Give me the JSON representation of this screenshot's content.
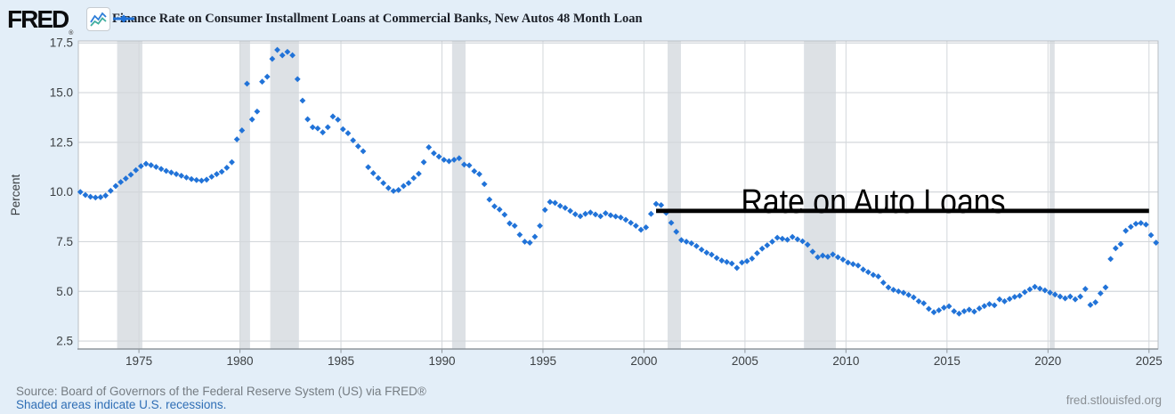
{
  "header": {
    "logo_text": "FRED",
    "registered_mark": "®",
    "series_title": "Finance Rate on Consumer Installment Loans at Commercial Banks, New Autos 48 Month Loan"
  },
  "footer": {
    "source_line": "Source: Board of Governors of the Federal Reserve System (US) via FRED®",
    "shaded_note": "Shaded areas indicate U.S. recessions.",
    "site_url": "fred.stlouisfed.org"
  },
  "colors": {
    "page_background": "#e3eef8",
    "plot_background": "#ffffff",
    "series_blue": "#2173d8",
    "recession_band": "#dde1e5",
    "gridline": "#d3d7db",
    "plot_border": "#b9bec3",
    "axis_line": "#8f969c",
    "tick_label": "#3c4043",
    "annotation_black": "#000000",
    "source_text": "#757c82",
    "link_blue": "#2f6eb5"
  },
  "chart_data": {
    "type": "scatter",
    "marker": "diamond",
    "title": "Finance Rate on Consumer Installment Loans at Commercial Banks, New Autos 48 Month Loan",
    "xlabel": "",
    "ylabel": "Percent",
    "xlim": [
      1972.0,
      2025.45
    ],
    "ylim": [
      2.1,
      17.6
    ],
    "grid": true,
    "legend_position": "top",
    "x_ticks": [
      1975,
      1980,
      1985,
      1990,
      1995,
      2000,
      2005,
      2010,
      2015,
      2020,
      2025
    ],
    "y_ticks": [
      {
        "value": 17.5,
        "label": "17.5"
      },
      {
        "value": 15.0,
        "label": "15.0"
      },
      {
        "value": 12.5,
        "label": "12.5"
      },
      {
        "value": 10.0,
        "label": "10.0"
      },
      {
        "value": 7.5,
        "label": "7.5"
      },
      {
        "value": 5.0,
        "label": "5.0"
      },
      {
        "value": 2.5,
        "label": "2.5"
      }
    ],
    "recessions": [
      [
        1973.92,
        1975.17
      ],
      [
        1980.0,
        1980.5
      ],
      [
        1981.5,
        1982.92
      ],
      [
        1990.5,
        1991.17
      ],
      [
        2001.17,
        2001.83
      ],
      [
        2007.92,
        2009.5
      ],
      [
        2020.08,
        2020.33
      ]
    ],
    "annotation": {
      "text": "Rate on Auto Loans",
      "line_value": 9.05,
      "line_start_year": 2000.6,
      "line_end_year": 2025.0,
      "text_center_year": 2011.35
    },
    "series": [
      {
        "name": "Finance Rate on Consumer Installment Loans at Commercial Banks, New Autos 48 Month Loan",
        "color": "#2173d8",
        "frequency": "quarterly",
        "points": [
          [
            1972.1,
            10.0
          ],
          [
            1972.35,
            9.85
          ],
          [
            1972.6,
            9.76
          ],
          [
            1972.85,
            9.72
          ],
          [
            1973.1,
            9.74
          ],
          [
            1973.35,
            9.82
          ],
          [
            1973.6,
            10.06
          ],
          [
            1973.85,
            10.3
          ],
          [
            1974.1,
            10.5
          ],
          [
            1974.35,
            10.68
          ],
          [
            1974.6,
            10.87
          ],
          [
            1974.85,
            11.1
          ],
          [
            1975.1,
            11.3
          ],
          [
            1975.35,
            11.42
          ],
          [
            1975.6,
            11.35
          ],
          [
            1975.85,
            11.26
          ],
          [
            1976.1,
            11.16
          ],
          [
            1976.35,
            11.06
          ],
          [
            1976.6,
            10.98
          ],
          [
            1976.85,
            10.9
          ],
          [
            1977.1,
            10.82
          ],
          [
            1977.35,
            10.73
          ],
          [
            1977.6,
            10.65
          ],
          [
            1977.85,
            10.6
          ],
          [
            1978.1,
            10.57
          ],
          [
            1978.35,
            10.62
          ],
          [
            1978.6,
            10.77
          ],
          [
            1978.85,
            10.9
          ],
          [
            1979.1,
            11.02
          ],
          [
            1979.35,
            11.22
          ],
          [
            1979.6,
            11.5
          ],
          [
            1979.85,
            12.65
          ],
          [
            1980.1,
            13.1
          ],
          [
            1980.35,
            15.45
          ],
          [
            1980.6,
            13.65
          ],
          [
            1980.85,
            14.05
          ],
          [
            1981.1,
            15.55
          ],
          [
            1981.35,
            15.8
          ],
          [
            1981.6,
            16.7
          ],
          [
            1981.85,
            17.15
          ],
          [
            1982.1,
            16.88
          ],
          [
            1982.35,
            17.05
          ],
          [
            1982.6,
            16.88
          ],
          [
            1982.85,
            15.68
          ],
          [
            1983.1,
            14.6
          ],
          [
            1983.35,
            13.66
          ],
          [
            1983.6,
            13.26
          ],
          [
            1983.85,
            13.2
          ],
          [
            1984.1,
            13.0
          ],
          [
            1984.35,
            13.26
          ],
          [
            1984.6,
            13.8
          ],
          [
            1984.85,
            13.64
          ],
          [
            1985.1,
            13.16
          ],
          [
            1985.35,
            12.96
          ],
          [
            1985.6,
            12.6
          ],
          [
            1985.85,
            12.3
          ],
          [
            1986.1,
            12.05
          ],
          [
            1986.35,
            11.25
          ],
          [
            1986.6,
            10.95
          ],
          [
            1986.85,
            10.7
          ],
          [
            1987.1,
            10.45
          ],
          [
            1987.35,
            10.2
          ],
          [
            1987.6,
            10.05
          ],
          [
            1987.85,
            10.1
          ],
          [
            1988.1,
            10.3
          ],
          [
            1988.35,
            10.45
          ],
          [
            1988.6,
            10.7
          ],
          [
            1988.85,
            10.92
          ],
          [
            1989.1,
            11.5
          ],
          [
            1989.35,
            12.25
          ],
          [
            1989.6,
            11.95
          ],
          [
            1989.85,
            11.78
          ],
          [
            1990.1,
            11.62
          ],
          [
            1990.35,
            11.55
          ],
          [
            1990.6,
            11.62
          ],
          [
            1990.85,
            11.7
          ],
          [
            1991.1,
            11.38
          ],
          [
            1991.35,
            11.34
          ],
          [
            1991.6,
            11.05
          ],
          [
            1991.85,
            10.9
          ],
          [
            1992.1,
            10.4
          ],
          [
            1992.35,
            9.62
          ],
          [
            1992.6,
            9.28
          ],
          [
            1992.85,
            9.12
          ],
          [
            1993.1,
            8.86
          ],
          [
            1993.35,
            8.42
          ],
          [
            1993.6,
            8.3
          ],
          [
            1993.85,
            7.85
          ],
          [
            1994.1,
            7.5
          ],
          [
            1994.35,
            7.45
          ],
          [
            1994.6,
            7.75
          ],
          [
            1994.85,
            8.3
          ],
          [
            1995.1,
            9.1
          ],
          [
            1995.35,
            9.5
          ],
          [
            1995.6,
            9.45
          ],
          [
            1995.85,
            9.3
          ],
          [
            1996.1,
            9.2
          ],
          [
            1996.35,
            9.05
          ],
          [
            1996.6,
            8.88
          ],
          [
            1996.85,
            8.78
          ],
          [
            1997.1,
            8.9
          ],
          [
            1997.35,
            8.97
          ],
          [
            1997.6,
            8.87
          ],
          [
            1997.85,
            8.78
          ],
          [
            1998.1,
            8.93
          ],
          [
            1998.35,
            8.83
          ],
          [
            1998.6,
            8.77
          ],
          [
            1998.85,
            8.72
          ],
          [
            1999.1,
            8.6
          ],
          [
            1999.35,
            8.45
          ],
          [
            1999.6,
            8.3
          ],
          [
            1999.85,
            8.1
          ],
          [
            2000.1,
            8.22
          ],
          [
            2000.35,
            8.9
          ],
          [
            2000.6,
            9.4
          ],
          [
            2000.85,
            9.34
          ],
          [
            2001.1,
            8.95
          ],
          [
            2001.35,
            8.45
          ],
          [
            2001.6,
            8.0
          ],
          [
            2001.85,
            7.58
          ],
          [
            2002.1,
            7.5
          ],
          [
            2002.35,
            7.42
          ],
          [
            2002.6,
            7.28
          ],
          [
            2002.85,
            7.1
          ],
          [
            2003.1,
            6.95
          ],
          [
            2003.35,
            6.85
          ],
          [
            2003.6,
            6.68
          ],
          [
            2003.85,
            6.55
          ],
          [
            2004.1,
            6.48
          ],
          [
            2004.35,
            6.4
          ],
          [
            2004.6,
            6.18
          ],
          [
            2004.85,
            6.45
          ],
          [
            2005.1,
            6.52
          ],
          [
            2005.35,
            6.65
          ],
          [
            2005.6,
            6.92
          ],
          [
            2005.85,
            7.15
          ],
          [
            2006.1,
            7.32
          ],
          [
            2006.35,
            7.5
          ],
          [
            2006.6,
            7.7
          ],
          [
            2006.85,
            7.65
          ],
          [
            2007.1,
            7.6
          ],
          [
            2007.35,
            7.74
          ],
          [
            2007.6,
            7.62
          ],
          [
            2007.85,
            7.52
          ],
          [
            2008.1,
            7.35
          ],
          [
            2008.35,
            7.0
          ],
          [
            2008.6,
            6.72
          ],
          [
            2008.85,
            6.8
          ],
          [
            2009.1,
            6.74
          ],
          [
            2009.35,
            6.86
          ],
          [
            2009.6,
            6.72
          ],
          [
            2009.85,
            6.6
          ],
          [
            2010.1,
            6.45
          ],
          [
            2010.35,
            6.37
          ],
          [
            2010.6,
            6.3
          ],
          [
            2010.85,
            6.1
          ],
          [
            2011.1,
            5.97
          ],
          [
            2011.35,
            5.83
          ],
          [
            2011.6,
            5.75
          ],
          [
            2011.85,
            5.44
          ],
          [
            2012.1,
            5.2
          ],
          [
            2012.35,
            5.08
          ],
          [
            2012.6,
            5.0
          ],
          [
            2012.85,
            4.93
          ],
          [
            2013.1,
            4.82
          ],
          [
            2013.35,
            4.7
          ],
          [
            2013.6,
            4.5
          ],
          [
            2013.85,
            4.4
          ],
          [
            2014.1,
            4.12
          ],
          [
            2014.35,
            3.95
          ],
          [
            2014.6,
            4.05
          ],
          [
            2014.85,
            4.18
          ],
          [
            2015.1,
            4.25
          ],
          [
            2015.35,
            4.0
          ],
          [
            2015.6,
            3.88
          ],
          [
            2015.85,
            4.0
          ],
          [
            2016.1,
            4.08
          ],
          [
            2016.35,
            3.98
          ],
          [
            2016.6,
            4.14
          ],
          [
            2016.85,
            4.26
          ],
          [
            2017.1,
            4.36
          ],
          [
            2017.35,
            4.3
          ],
          [
            2017.6,
            4.6
          ],
          [
            2017.85,
            4.5
          ],
          [
            2018.1,
            4.62
          ],
          [
            2018.35,
            4.72
          ],
          [
            2018.6,
            4.78
          ],
          [
            2018.85,
            4.96
          ],
          [
            2019.1,
            5.1
          ],
          [
            2019.35,
            5.23
          ],
          [
            2019.6,
            5.14
          ],
          [
            2019.85,
            5.05
          ],
          [
            2020.1,
            4.94
          ],
          [
            2020.35,
            4.84
          ],
          [
            2020.6,
            4.74
          ],
          [
            2020.85,
            4.65
          ],
          [
            2021.1,
            4.74
          ],
          [
            2021.35,
            4.6
          ],
          [
            2021.6,
            4.74
          ],
          [
            2021.85,
            5.12
          ],
          [
            2022.1,
            4.32
          ],
          [
            2022.35,
            4.45
          ],
          [
            2022.6,
            4.9
          ],
          [
            2022.85,
            5.2
          ],
          [
            2023.1,
            6.63
          ],
          [
            2023.35,
            7.17
          ],
          [
            2023.6,
            7.38
          ],
          [
            2023.85,
            8.05
          ],
          [
            2024.1,
            8.25
          ],
          [
            2024.35,
            8.4
          ],
          [
            2024.6,
            8.44
          ],
          [
            2024.85,
            8.36
          ],
          [
            2025.1,
            7.83
          ],
          [
            2025.35,
            7.45
          ]
        ]
      }
    ]
  }
}
